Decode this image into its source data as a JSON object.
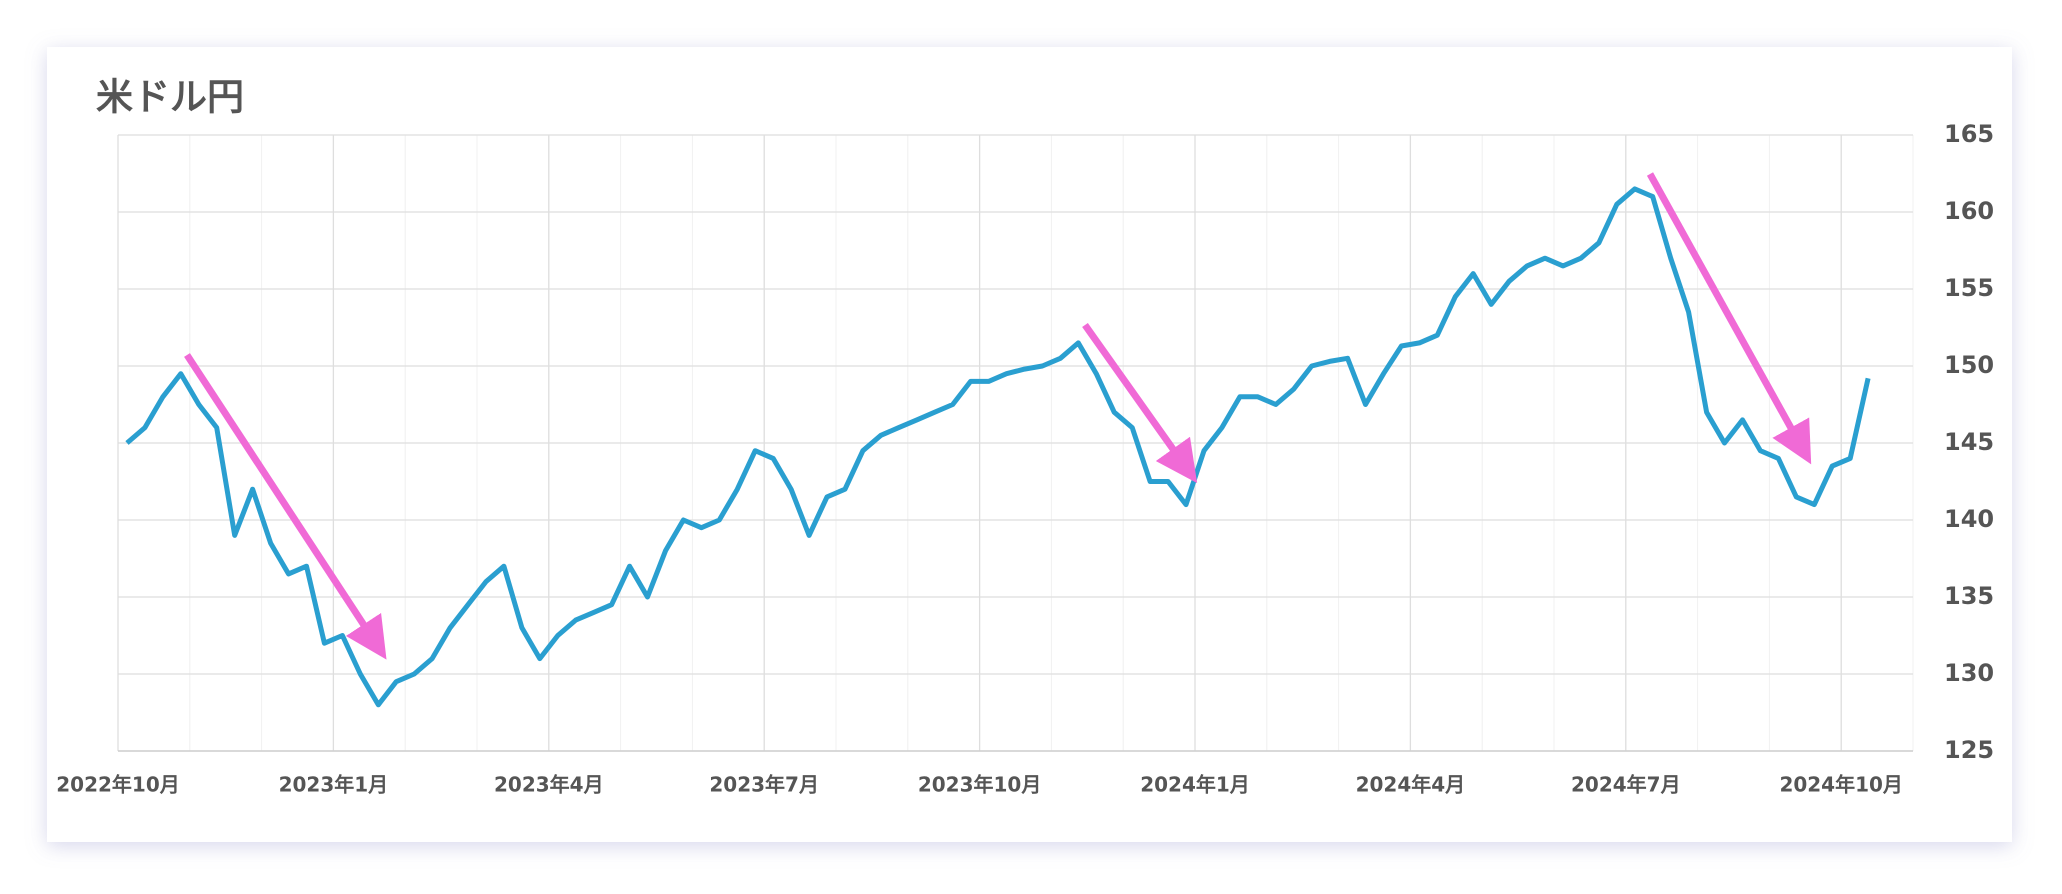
{
  "chart_data": {
    "type": "line",
    "title": "米ドル円",
    "x": [
      "2022-10",
      "2022-10",
      "2022-10",
      "2022-10",
      "2022-11",
      "2022-11",
      "2022-11",
      "2022-11",
      "2022-12",
      "2022-12",
      "2022-12",
      "2022-12",
      "2023-01",
      "2023-01",
      "2023-01",
      "2023-01",
      "2023-02",
      "2023-02",
      "2023-02",
      "2023-02",
      "2023-03",
      "2023-03",
      "2023-03",
      "2023-03",
      "2023-04",
      "2023-04",
      "2023-04",
      "2023-04",
      "2023-05",
      "2023-05",
      "2023-05",
      "2023-05",
      "2023-06",
      "2023-06",
      "2023-06",
      "2023-06",
      "2023-07",
      "2023-07",
      "2023-07",
      "2023-07",
      "2023-08",
      "2023-08",
      "2023-08",
      "2023-08",
      "2023-09",
      "2023-09",
      "2023-09",
      "2023-09",
      "2023-10",
      "2023-10",
      "2023-10",
      "2023-10",
      "2023-11",
      "2023-11",
      "2023-11",
      "2023-11",
      "2023-12",
      "2023-12",
      "2023-12",
      "2023-12",
      "2024-01",
      "2024-01",
      "2024-01",
      "2024-01",
      "2024-02",
      "2024-02",
      "2024-02",
      "2024-02",
      "2024-03",
      "2024-03",
      "2024-03",
      "2024-03",
      "2024-04",
      "2024-04",
      "2024-04",
      "2024-04",
      "2024-05",
      "2024-05",
      "2024-05",
      "2024-05",
      "2024-06",
      "2024-06",
      "2024-06",
      "2024-06",
      "2024-07",
      "2024-07",
      "2024-07",
      "2024-07",
      "2024-08",
      "2024-08",
      "2024-08",
      "2024-08",
      "2024-09",
      "2024-09",
      "2024-09",
      "2024-09",
      "2024-10",
      "2024-10"
    ],
    "series": [
      {
        "name": "米ドル円",
        "color": "#2a9fd0",
        "values": [
          145,
          146,
          148,
          149.5,
          147.5,
          146,
          139,
          142,
          138.5,
          136.5,
          137,
          132,
          132.5,
          130,
          128,
          129.5,
          130,
          131,
          133,
          134.5,
          136,
          137,
          133,
          131,
          132.5,
          133.5,
          134,
          134.5,
          137,
          135,
          138,
          140,
          139.5,
          140,
          142,
          144.5,
          144,
          142,
          139,
          141.5,
          142,
          144.5,
          145.5,
          146,
          146.5,
          147,
          147.5,
          149,
          149,
          149.5,
          149.8,
          150,
          150.5,
          151.5,
          149.5,
          147,
          146,
          142.5,
          142.5,
          141,
          144.5,
          146,
          148,
          148,
          147.5,
          148.5,
          150,
          150.3,
          150.5,
          147.5,
          149.5,
          151.3,
          151.5,
          152,
          154.5,
          156,
          154,
          155.5,
          156.5,
          157,
          156.5,
          157,
          158,
          160.5,
          161.5,
          161,
          157,
          153.5,
          147,
          145,
          146.5,
          144.5,
          144,
          141.5,
          141,
          143.5,
          144,
          149.2
        ]
      }
    ],
    "xlim": [
      "2022-10",
      "2024-11"
    ],
    "xticks": [
      {
        "value": "2022-10",
        "label": "2022年10月"
      },
      {
        "value": "2023-01",
        "label": "2023年1月"
      },
      {
        "value": "2023-04",
        "label": "2023年4月"
      },
      {
        "value": "2023-07",
        "label": "2023年7月"
      },
      {
        "value": "2023-10",
        "label": "2023年10月"
      },
      {
        "value": "2024-01",
        "label": "2024年1月"
      },
      {
        "value": "2024-04",
        "label": "2024年4月"
      },
      {
        "value": "2024-07",
        "label": "2024年7月"
      },
      {
        "value": "2024-10",
        "label": "2024年10月"
      }
    ],
    "ylim": [
      125,
      165
    ],
    "yticks": [
      125,
      130,
      135,
      140,
      145,
      150,
      155,
      160,
      165
    ],
    "grid": true
  }
}
